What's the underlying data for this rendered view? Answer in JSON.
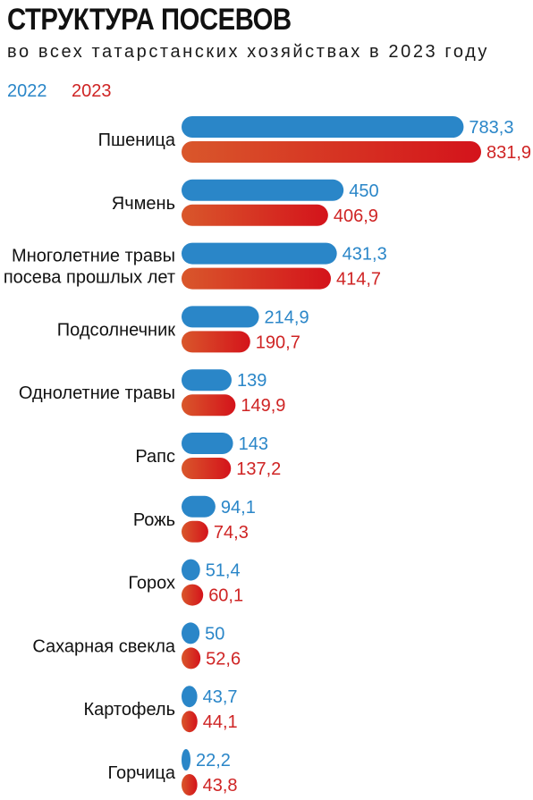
{
  "title": "СТРУКТУРА ПОСЕВОВ",
  "subtitle": "во всех татарстанских хозяйствах в 2023 году",
  "colors": {
    "series_2022": "#2a86c8",
    "series_2023_start": "#d9572b",
    "series_2023_end": "#d4131b",
    "label_2023": "#cf2424"
  },
  "chart_data": {
    "type": "bar",
    "orientation": "horizontal",
    "title": "СТРУКТУРА ПОСЕВОВ",
    "subtitle": "во всех татарстанских хозяйствах в 2023 году",
    "legend_placement": "top-left",
    "grid": false,
    "xlim": [
      0,
      831.9
    ],
    "categories": [
      [
        "Пшеница"
      ],
      [
        "Ячмень"
      ],
      [
        "Многолетние травы",
        "посева прошлых лет"
      ],
      [
        "Подсолнечник"
      ],
      [
        "Однолетние травы"
      ],
      [
        "Рапс"
      ],
      [
        "Рожь"
      ],
      [
        "Горох"
      ],
      [
        "Сахарная свекла"
      ],
      [
        "Картофель"
      ],
      [
        "Горчица"
      ]
    ],
    "series": [
      {
        "name": "2022",
        "values": [
          783.3,
          450,
          431.3,
          214.9,
          139,
          143,
          94.1,
          51.4,
          50,
          43.7,
          22.2
        ],
        "labels": [
          "783,3",
          "450",
          "431,3",
          "214,9",
          "139",
          "143",
          "94,1",
          "51,4",
          "50",
          "43,7",
          "22,2"
        ]
      },
      {
        "name": "2023",
        "values": [
          831.9,
          406.9,
          414.7,
          190.7,
          149.9,
          137.2,
          74.3,
          60.1,
          52.6,
          44.1,
          43.8
        ],
        "labels": [
          "831,9",
          "406,9",
          "414,7",
          "190,7",
          "149,9",
          "137,2",
          "74,3",
          "60,1",
          "52,6",
          "44,1",
          "43,8"
        ]
      }
    ]
  }
}
